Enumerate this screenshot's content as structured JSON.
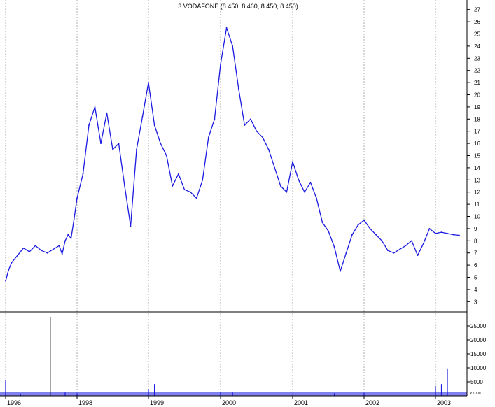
{
  "chart_data": [
    {
      "type": "line",
      "title": "3 VODAFONE (8.450, 8.460, 8.450, 8.450)",
      "xlabel": "",
      "ylabel": "",
      "x_ticks": [
        "1996",
        "1998",
        "1999",
        "2000",
        "2001",
        "2002",
        "2003"
      ],
      "y_ticks": [
        3,
        4,
        5,
        6,
        7,
        8,
        9,
        10,
        11,
        12,
        13,
        14,
        15,
        16,
        17,
        18,
        19,
        20,
        21,
        22,
        23,
        24,
        25,
        26,
        27
      ],
      "ylim": [
        2.5,
        27.5
      ],
      "xlim": [
        "1996-01",
        "2003-06"
      ],
      "grid": {
        "vertical": true,
        "horizontal": false
      },
      "series": [
        {
          "color": "#1a1ae0",
          "points": [
            [
              "1996-01",
              4.7
            ],
            [
              "1996-02",
              5.6
            ],
            [
              "1996-03",
              6.2
            ],
            [
              "1996-05",
              6.8
            ],
            [
              "1996-07",
              7.4
            ],
            [
              "1996-09",
              7.1
            ],
            [
              "1996-11",
              7.6
            ],
            [
              "1997-01",
              7.2
            ],
            [
              "1997-03",
              7.0
            ],
            [
              "1997-05",
              7.3
            ],
            [
              "1997-07",
              7.6
            ],
            [
              "1997-08",
              6.9
            ],
            [
              "1997-09",
              8.0
            ],
            [
              "1997-10",
              8.5
            ],
            [
              "1997-11",
              8.2
            ],
            [
              "1997-12",
              9.8
            ],
            [
              "1998-01",
              11.5
            ],
            [
              "1998-02",
              13.5
            ],
            [
              "1998-03",
              17.5
            ],
            [
              "1998-04",
              19.0
            ],
            [
              "1998-05",
              16.0
            ],
            [
              "1998-06",
              18.5
            ],
            [
              "1998-07",
              15.5
            ],
            [
              "1998-08",
              16.0
            ],
            [
              "1998-09",
              12.5
            ],
            [
              "1998-10",
              9.2
            ],
            [
              "1998-11",
              15.5
            ],
            [
              "1998-12",
              18.2
            ],
            [
              "1999-01",
              21.0
            ],
            [
              "1999-02",
              17.5
            ],
            [
              "1999-03",
              16.0
            ],
            [
              "1999-04",
              15.0
            ],
            [
              "1999-05",
              12.5
            ],
            [
              "1999-06",
              13.5
            ],
            [
              "1999-07",
              12.2
            ],
            [
              "1999-08",
              12.0
            ],
            [
              "1999-09",
              11.5
            ],
            [
              "1999-10",
              13.0
            ],
            [
              "1999-11",
              16.5
            ],
            [
              "1999-12",
              18.0
            ],
            [
              "2000-01",
              22.5
            ],
            [
              "2000-02",
              25.5
            ],
            [
              "2000-03",
              24.0
            ],
            [
              "2000-04",
              20.5
            ],
            [
              "2000-05",
              17.5
            ],
            [
              "2000-06",
              18.0
            ],
            [
              "2000-07",
              17.0
            ],
            [
              "2000-08",
              16.5
            ],
            [
              "2000-09",
              15.5
            ],
            [
              "2000-10",
              14.0
            ],
            [
              "2000-11",
              12.5
            ],
            [
              "2000-12",
              12.0
            ],
            [
              "2001-01",
              14.5
            ],
            [
              "2001-02",
              13.0
            ],
            [
              "2001-03",
              12.0
            ],
            [
              "2001-04",
              12.8
            ],
            [
              "2001-05",
              11.5
            ],
            [
              "2001-06",
              9.5
            ],
            [
              "2001-07",
              8.8
            ],
            [
              "2001-08",
              7.5
            ],
            [
              "2001-09",
              5.5
            ],
            [
              "2001-10",
              7.0
            ],
            [
              "2001-11",
              8.5
            ],
            [
              "2001-12",
              9.3
            ],
            [
              "2002-01",
              9.7
            ],
            [
              "2002-02",
              9.0
            ],
            [
              "2002-03",
              8.5
            ],
            [
              "2002-04",
              8.0
            ],
            [
              "2002-05",
              7.2
            ],
            [
              "2002-06",
              7.0
            ],
            [
              "2002-07",
              7.3
            ],
            [
              "2002-08",
              7.6
            ],
            [
              "2002-09",
              8.0
            ],
            [
              "2002-10",
              6.8
            ],
            [
              "2002-11",
              7.8
            ],
            [
              "2002-12",
              9.0
            ],
            [
              "2003-01",
              8.6
            ],
            [
              "2003-02",
              8.7
            ],
            [
              "2003-03",
              8.6
            ],
            [
              "2003-04",
              8.5
            ],
            [
              "2003-05",
              8.45
            ]
          ]
        }
      ]
    },
    {
      "type": "bar",
      "title": "",
      "y_ticks": [
        5000,
        10000,
        15000,
        20000,
        25000
      ],
      "ylim": [
        0,
        28000
      ],
      "unit_label": "x 1000",
      "bar_color": "#1a1ae0",
      "spikes": [
        [
          "1996-01",
          5500
        ],
        [
          "1996-06",
          800
        ],
        [
          "1997-04",
          28000
        ],
        [
          "1997-09",
          1200
        ],
        [
          "1998-01",
          900
        ],
        [
          "1999-01",
          2500
        ],
        [
          "1999-02",
          4200
        ],
        [
          "2000-01",
          1500
        ],
        [
          "2000-03",
          1200
        ],
        [
          "2001-08",
          900
        ],
        [
          "2002-01",
          1000
        ],
        [
          "2003-01",
          3500
        ],
        [
          "2003-02",
          4200
        ],
        [
          "2003-03",
          9800
        ]
      ]
    }
  ]
}
